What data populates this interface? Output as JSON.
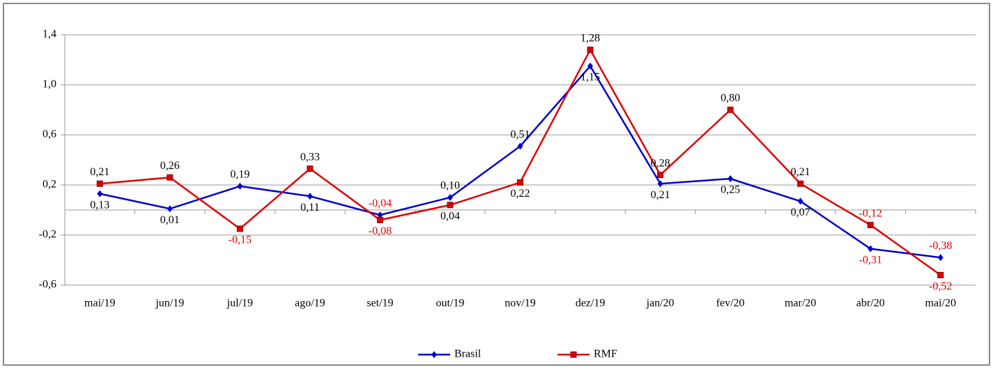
{
  "chart_data": {
    "type": "line",
    "categories": [
      "mai/19",
      "jun/19",
      "jul/19",
      "ago/19",
      "set/19",
      "out/19",
      "nov/19",
      "dez/19",
      "jan/20",
      "fev/20",
      "mar/20",
      "abr/20",
      "mai/20"
    ],
    "series": [
      {
        "name": "Brasil",
        "color": "#0000cc",
        "marker": "diamond",
        "values": [
          0.13,
          0.01,
          0.19,
          0.11,
          -0.04,
          0.1,
          0.51,
          1.15,
          0.21,
          0.25,
          0.07,
          -0.31,
          -0.38
        ],
        "value_labels": [
          "0,13",
          "0,01",
          "0,19",
          "0,11",
          "-0,04",
          "0,10",
          "0,51",
          "1,15",
          "0,21",
          "0,25",
          "0,07",
          "-0,31",
          "-0,38"
        ]
      },
      {
        "name": "RMF",
        "color": "#e00000",
        "marker": "square",
        "values": [
          0.21,
          0.26,
          -0.15,
          0.33,
          -0.08,
          0.04,
          0.22,
          1.28,
          0.28,
          0.8,
          0.21,
          -0.12,
          -0.52
        ],
        "value_labels": [
          "0,21",
          "0,26",
          "-0,15",
          "0,33",
          "-0,08",
          "0,04",
          "0,22",
          "1,28",
          "0,28",
          "0,80",
          "0,21",
          "-0,12",
          "-0,52"
        ]
      }
    ],
    "ylim": [
      -0.6,
      1.4
    ],
    "yticks": [
      {
        "value": -0.6,
        "label": "-0,6"
      },
      {
        "value": -0.2,
        "label": "-0,2"
      },
      {
        "value": 0.2,
        "label": "0,2"
      },
      {
        "value": 0.6,
        "label": "0,6"
      },
      {
        "value": 1.0,
        "label": "1,0"
      },
      {
        "value": 1.4,
        "label": "1,4"
      }
    ],
    "grid": true,
    "legend": "bottom"
  }
}
